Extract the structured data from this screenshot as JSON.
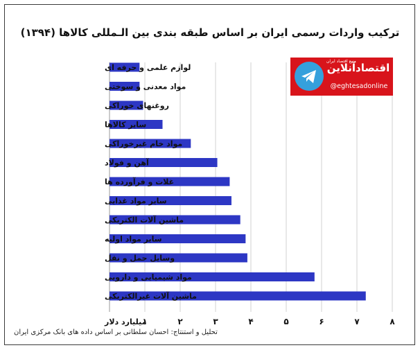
{
  "chart_data": {
    "type": "bar",
    "orientation": "horizontal",
    "title": "ترکیب واردات رسمی ایران بر اساس طبقه بندی بین الـمللی کالاها (۱۳۹۴)",
    "xlabel": "میلیارد دلار",
    "xlim": [
      0,
      8
    ],
    "xticks": [
      "۱",
      "۲",
      "۳",
      "۴",
      "۵",
      "۶",
      "۷",
      "۸"
    ],
    "grid": true,
    "bar_color": "#2d37c4",
    "categories": [
      "لوازم علمی و حرفه ای",
      "مواد معدنی و سوختی",
      "روغنهای خوراکی",
      "سایر کالاها",
      "مواد خام غیرخوراکی",
      "آهن و فولاد",
      "غلات و فرآورده ها",
      "سایر مواد غذایی",
      "ماشین آلات الکتریکی",
      "سایر مواد اولیه",
      "وسایل حمل و نقل",
      "مواد شیمیایی و دارویی",
      "ماشین آلات غیرالکتریکی"
    ],
    "values": [
      0.85,
      0.85,
      0.95,
      1.5,
      2.3,
      3.05,
      3.4,
      3.45,
      3.7,
      3.85,
      3.9,
      5.8,
      7.25
    ]
  },
  "credit": "تحلیل و استنتاج: احسان سلطانی بر اساس داده های بانک مرکزی ایران",
  "logo": {
    "name": "اقتصادآنلاین",
    "tagline": "منبع اقتصاد ایران",
    "url": "@eghtesadonline"
  }
}
